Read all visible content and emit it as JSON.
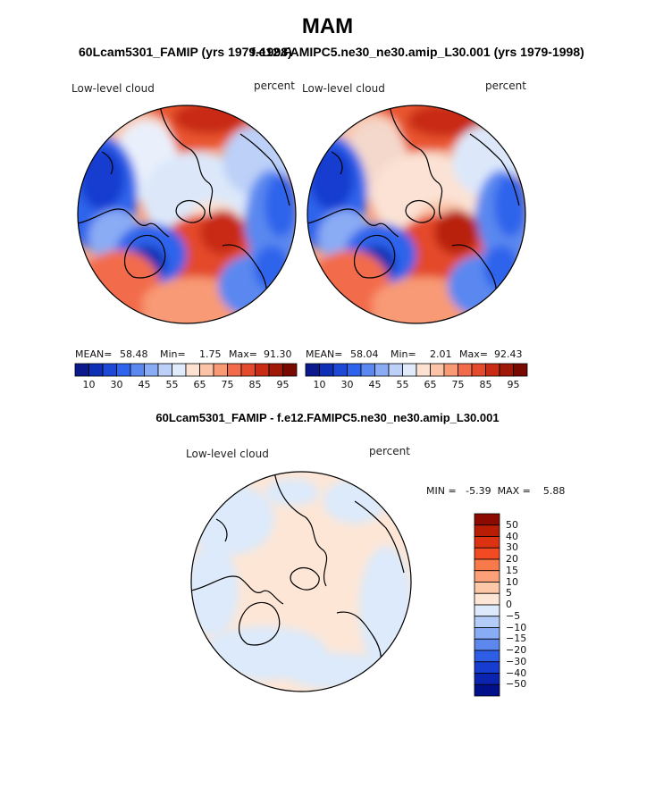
{
  "figure": {
    "season": "MAM",
    "case1_title": "60Lcam5301_FAMIP (yrs 1979-1998)",
    "case2_title": "f.e12.FAMIPC5.ne30_ne30.amip_L30.001 (yrs 1979-1998)",
    "diff_title": "60Lcam5301_FAMIP - f.e12.FAMIPC5.ne30_ne30.amip_L30.001"
  },
  "panels": [
    {
      "variable": "Low-level cloud",
      "units": "percent",
      "mean_label": "MEAN=",
      "mean": "58.48",
      "min_label": "Min=",
      "min": "1.75",
      "max_label": "Max=",
      "max": "91.30"
    },
    {
      "variable": "Low-level cloud",
      "units": "percent",
      "mean_label": "MEAN=",
      "mean": "58.04",
      "min_label": "Min=",
      "min": "2.01",
      "max_label": "Max=",
      "max": "92.43"
    }
  ],
  "difference": {
    "variable": "Low-level cloud",
    "units": "percent",
    "stats_line": "MIN =   -5.39  MAX =    5.88"
  },
  "abs_colorbar": {
    "tick_labels": [
      "10",
      "30",
      "45",
      "55",
      "65",
      "75",
      "85",
      "95"
    ],
    "colors": [
      "#0a1a8c",
      "#0f30b4",
      "#1e48d6",
      "#2e64eb",
      "#5a88f0",
      "#8aacf5",
      "#bcd0f8",
      "#e0ecfb",
      "#fde2d2",
      "#fbc4a8",
      "#f89a74",
      "#f26c4c",
      "#e44a2c",
      "#c82c14",
      "#a01808",
      "#780800"
    ]
  },
  "diff_colorbar": {
    "tick_labels": [
      "50",
      "40",
      "30",
      "20",
      "15",
      "10",
      "5",
      "0",
      "−5",
      "−10",
      "−15",
      "−20",
      "−30",
      "−40",
      "−50"
    ],
    "colors": [
      "#8c0a00",
      "#b81e06",
      "#dc3212",
      "#f24a22",
      "#f87a4a",
      "#fba078",
      "#fcc8a8",
      "#fde6d6",
      "#dceafb",
      "#b4cdf8",
      "#88adf4",
      "#5c88ee",
      "#2f5ee6",
      "#163cd0",
      "#0b24b0",
      "#00108a"
    ]
  }
}
